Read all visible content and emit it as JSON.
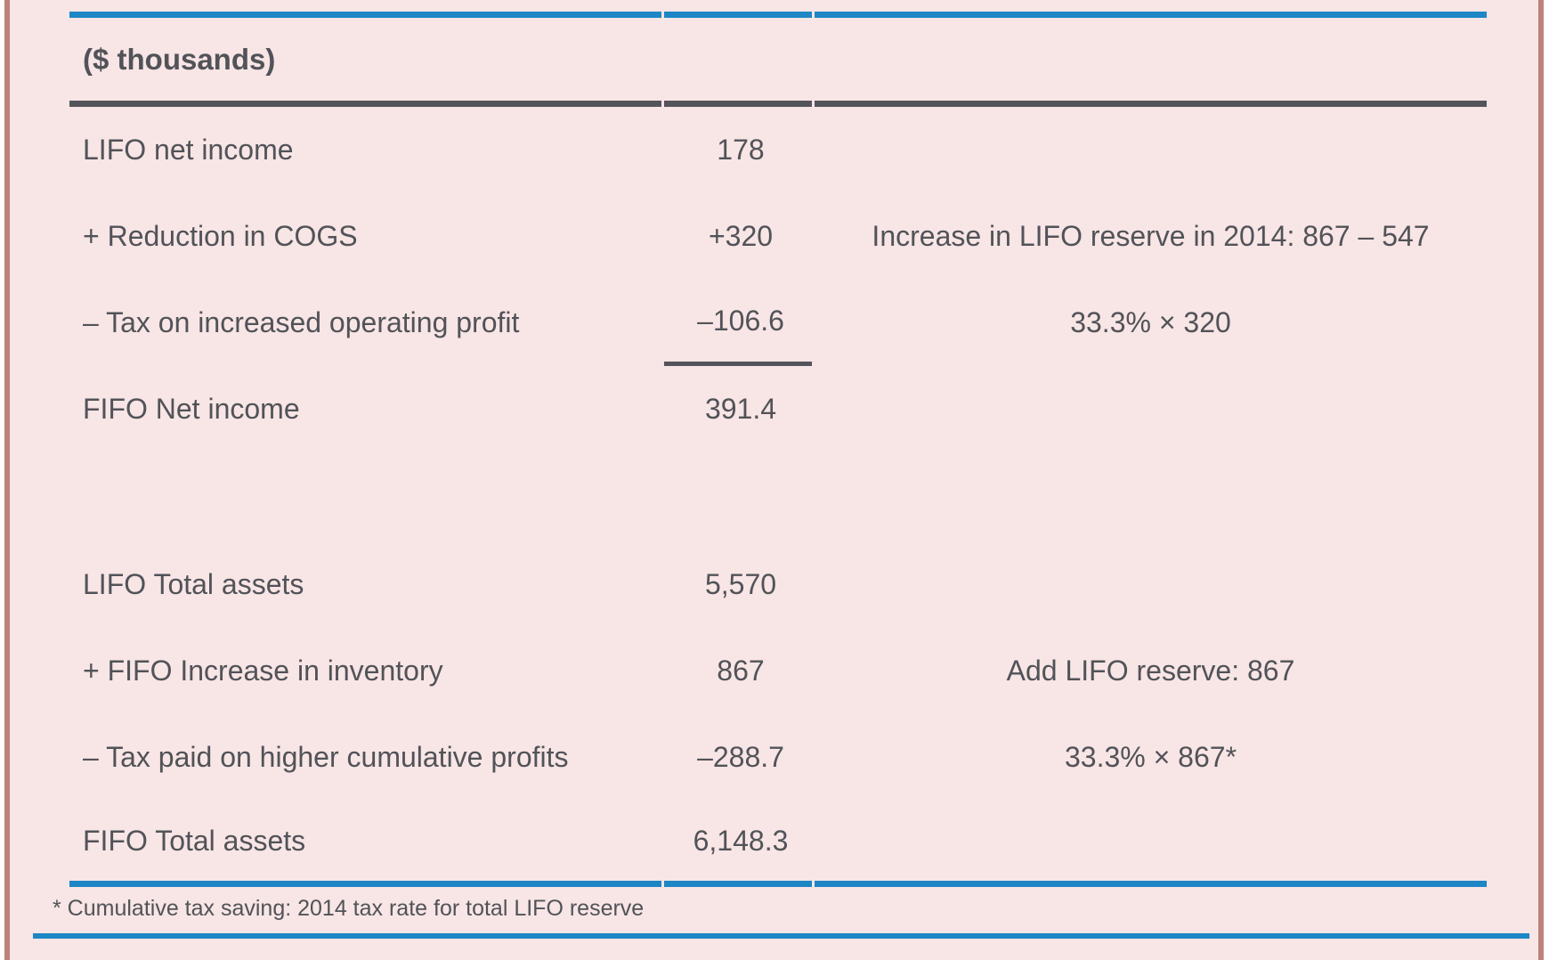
{
  "table": {
    "unit_header": "($ thousands)",
    "rows": [
      {
        "label": "LIFO net income",
        "value": "178",
        "note": ""
      },
      {
        "label": "+ Reduction in COGS",
        "value": "+320",
        "note": "Increase in LIFO reserve in 2014: 867 – 547"
      },
      {
        "label": "– Tax on increased operating profit",
        "value": "–106.6",
        "note": "33.3% × 320",
        "subtotal_rule": true
      },
      {
        "label": "FIFO Net income",
        "value": "391.4",
        "note": ""
      },
      {
        "label": "",
        "value": "",
        "note": ""
      },
      {
        "label": "LIFO Total assets",
        "value": "5,570",
        "note": ""
      },
      {
        "label": "+ FIFO Increase in inventory",
        "value": "867",
        "note": "Add LIFO reserve: 867"
      },
      {
        "label": "– Tax paid on higher cumulative profits",
        "value": "–288.7",
        "note": "33.3% × 867*"
      },
      {
        "label": "FIFO Total assets",
        "value": "6,148.3",
        "note": ""
      }
    ],
    "footnote": "* Cumulative tax saving: 2014 tax rate for total LIFO reserve"
  },
  "colors": {
    "background": "#f8e5e5",
    "accent_blue": "#1d86c5",
    "rule_dark": "#54555b",
    "text": "#515358",
    "frame_salmon": "#bd827b",
    "page_white": "#ffffff"
  }
}
